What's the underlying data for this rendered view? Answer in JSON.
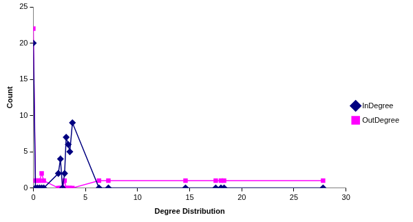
{
  "chart_data": {
    "type": "line",
    "x_label": "Degree Distribution",
    "y_label": "Count",
    "x": [
      0,
      0.2,
      0.4,
      0.6,
      0.8,
      1.0,
      2.4,
      2.6,
      2.8,
      3.0,
      3.15,
      3.35,
      3.5,
      3.75,
      6.3,
      7.2,
      14.6,
      17.5,
      18.0,
      18.3,
      27.8
    ],
    "series": [
      {
        "name": "InDegree",
        "color": "#000080",
        "marker": "diamond",
        "values": [
          20,
          0,
          0,
          0,
          0,
          0,
          2,
          4,
          0,
          2,
          7,
          6,
          5,
          9,
          0,
          0,
          0,
          0,
          0,
          0,
          0
        ]
      },
      {
        "name": "OutDegree",
        "color": "#ff00ff",
        "marker": "square",
        "values": [
          22,
          1,
          1,
          1,
          2,
          1,
          0,
          0,
          0,
          1,
          0,
          0,
          0,
          0,
          1,
          1,
          1,
          1,
          1,
          1,
          1
        ]
      }
    ],
    "xlim": [
      0,
      30
    ],
    "xticks": [
      0,
      5,
      10,
      15,
      20,
      25,
      30
    ],
    "ylim": [
      0,
      25
    ],
    "yticks": [
      0,
      5,
      10,
      15,
      20,
      25
    ],
    "grid": false,
    "legend": "right"
  }
}
